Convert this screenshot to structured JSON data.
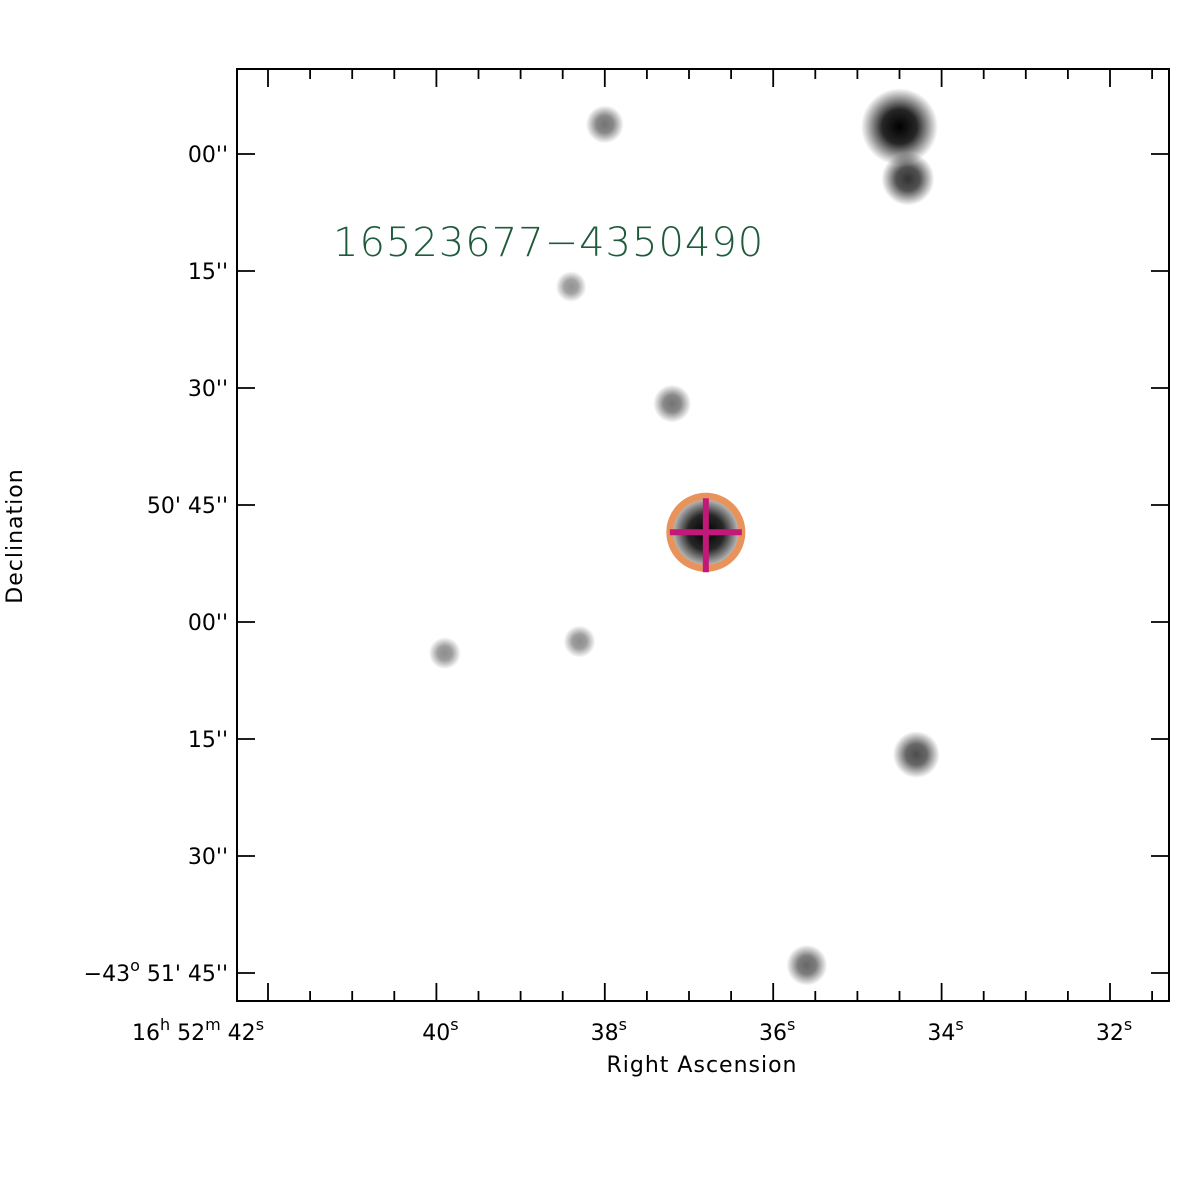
{
  "source_label": "16523677−4350490",
  "axes": {
    "xlabel": "Right Ascension",
    "ylabel": "Declination"
  },
  "ra_ticks": [
    {
      "value_sec": 42,
      "label_h": "16",
      "label_m": "52",
      "label_s": "42"
    },
    {
      "value_sec": 40,
      "label_s": "40"
    },
    {
      "value_sec": 38,
      "label_s": "38"
    },
    {
      "value_sec": 36,
      "label_s": "36"
    },
    {
      "value_sec": 34,
      "label_s": "34"
    },
    {
      "value_sec": 32,
      "label_s": "32"
    }
  ],
  "dec_ticks": [
    {
      "arcsec": 0,
      "label": "00''"
    },
    {
      "arcsec": -15,
      "label": "15''"
    },
    {
      "arcsec": -30,
      "label": "30''"
    },
    {
      "arcsec": -45,
      "label_min": "50'",
      "label": "45''"
    },
    {
      "arcsec": -60,
      "label": "00''"
    },
    {
      "arcsec": -75,
      "label": "15''"
    },
    {
      "arcsec": -90,
      "label": "30''"
    },
    {
      "arcsec": -105,
      "label_deg": "−43",
      "label_min": "51'",
      "label": "45''"
    }
  ],
  "units": {
    "h": "h",
    "m": "m",
    "s": "s",
    "deg": "o"
  },
  "colors": {
    "label": "#1e5a3c",
    "circle": "#e8935c",
    "crosshair": "#c2187a",
    "frame": "#000000"
  },
  "sources": [
    {
      "ra_sec": 36.8,
      "dec_arcsec": -48.5,
      "brightness": 1.0,
      "role": "target"
    },
    {
      "ra_sec": 34.5,
      "dec_arcsec": 3.5,
      "brightness": 0.95
    },
    {
      "ra_sec": 34.4,
      "dec_arcsec": -3.2,
      "brightness": 0.55
    },
    {
      "ra_sec": 38.0,
      "dec_arcsec": 3.8,
      "brightness": 0.3
    },
    {
      "ra_sec": 37.2,
      "dec_arcsec": -32.0,
      "brightness": 0.3
    },
    {
      "ra_sec": 38.4,
      "dec_arcsec": -17.0,
      "brightness": 0.18
    },
    {
      "ra_sec": 39.9,
      "dec_arcsec": -64.0,
      "brightness": 0.2
    },
    {
      "ra_sec": 38.3,
      "dec_arcsec": -62.5,
      "brightness": 0.2
    },
    {
      "ra_sec": 34.3,
      "dec_arcsec": -77.0,
      "brightness": 0.45
    },
    {
      "ra_sec": 35.6,
      "dec_arcsec": -104.0,
      "brightness": 0.35
    }
  ]
}
